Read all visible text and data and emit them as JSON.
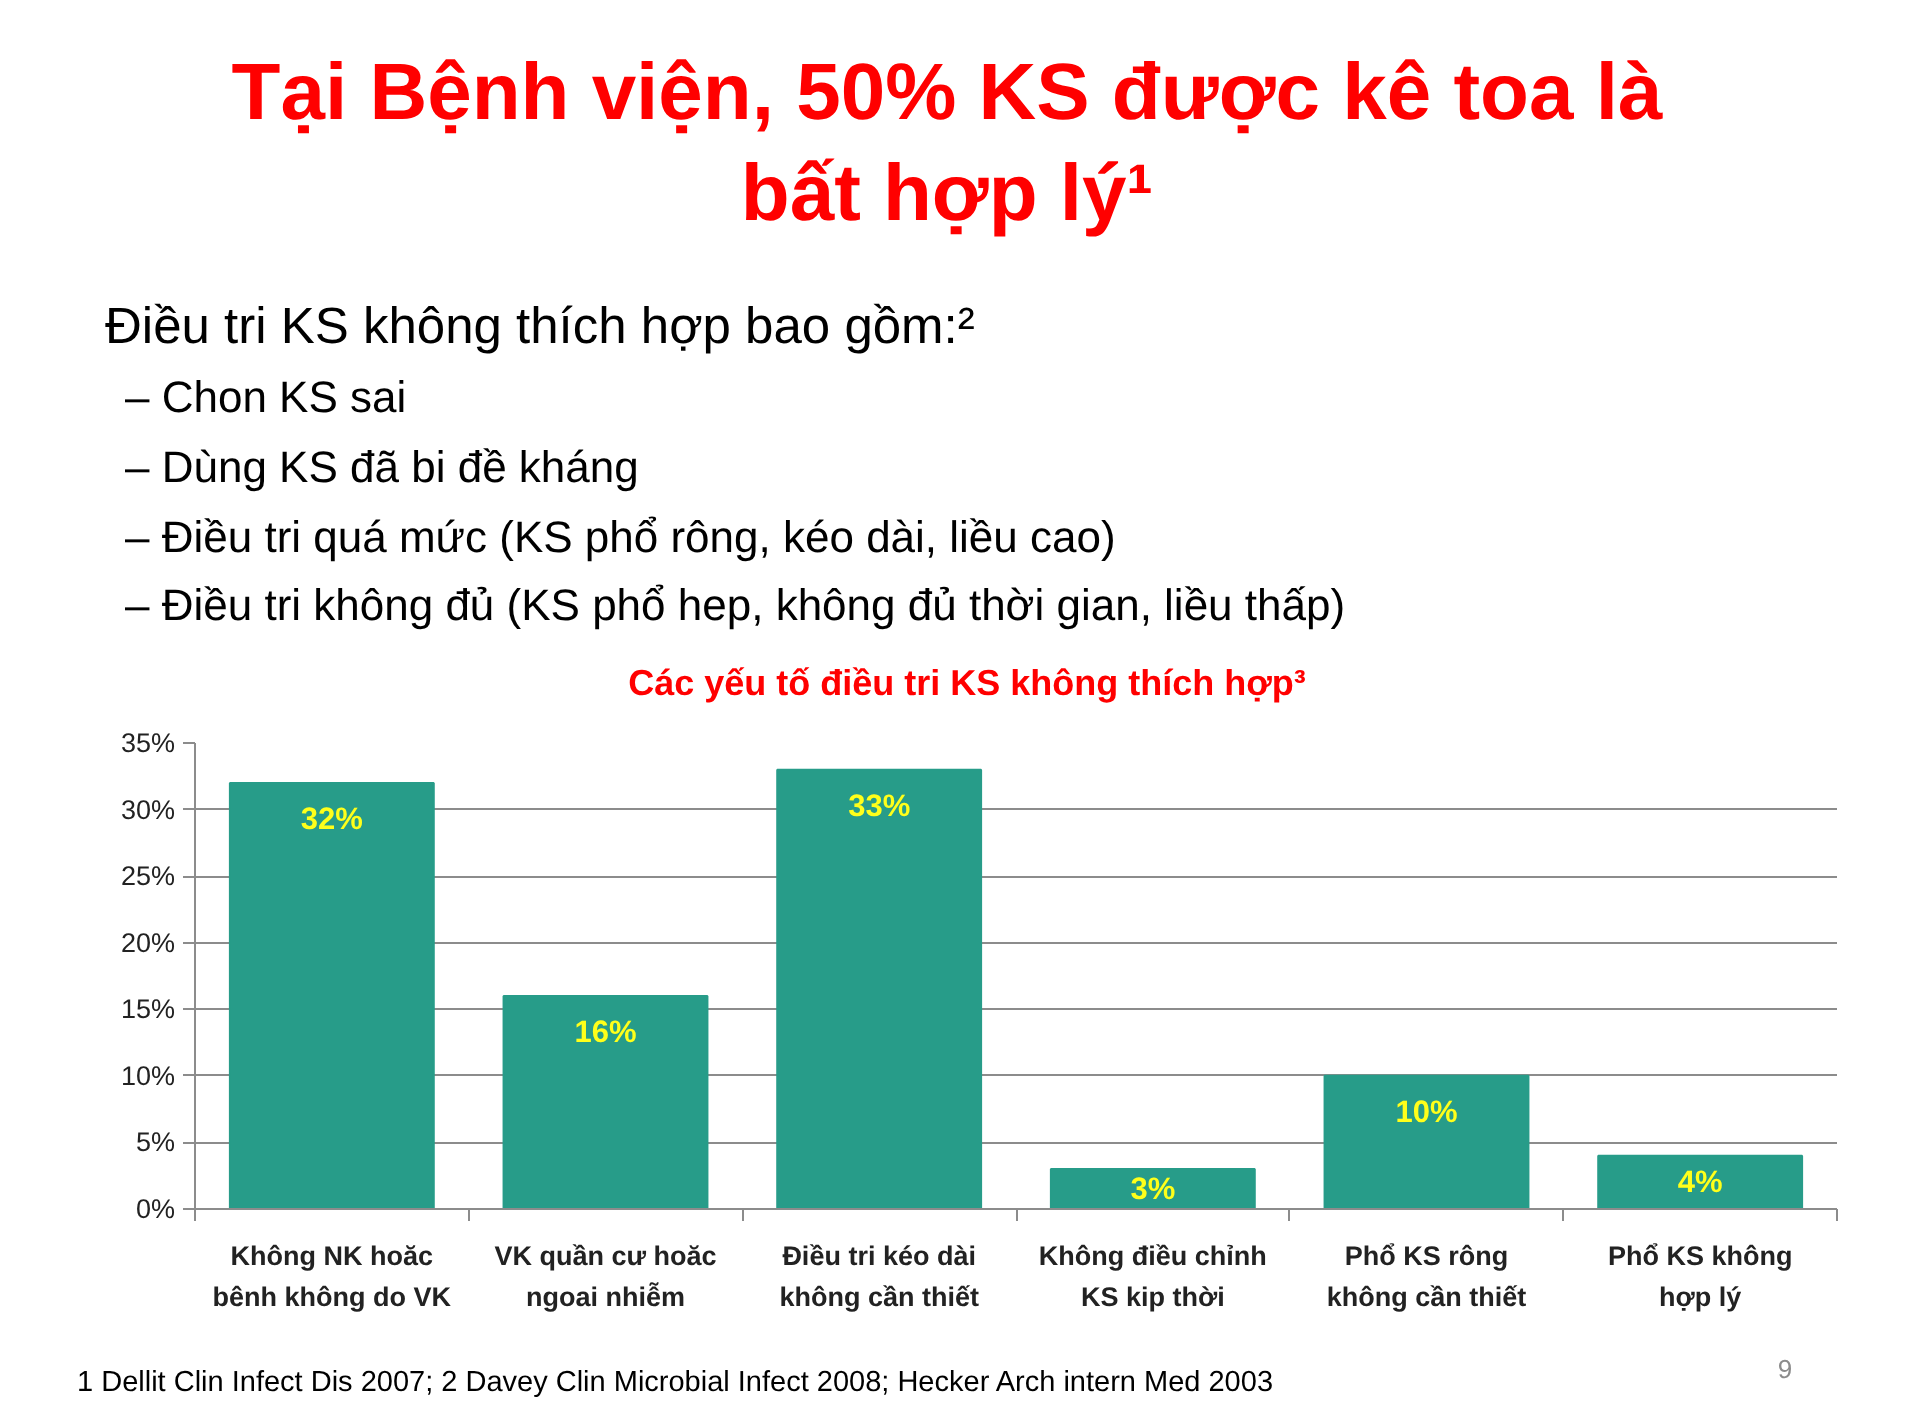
{
  "chart_data": {
    "type": "bar",
    "title": "Tại Bệnh viện, 50% KS được kê toa là\nbất hợp lý¹",
    "subtitle": "Các yếu tố điều tri KS không thích hợp³",
    "annotations": [
      "Điều tri KS không thích hợp bao gồm:²",
      "– Chon KS sai",
      "– Dùng KS đã bi đề kháng",
      "– Điều tri quá mức (KS phổ rông, kéo dài, liều cao)",
      "– Điều tri không đủ (KS phổ hep, không đủ thời gian, liều thấp)",
      "1 Dellit Clin Infect Dis 2007; 2 Davey Clin Microbial Infect 2008; Hecker Arch intern Med 2003",
      "9"
    ],
    "categories": [
      "Không NK hoăc\nbênh không do VK",
      "VK quần cư hoăc\nngoai nhiễm",
      "Điều tri kéo dài\nkhông cần thiết",
      "Không điều chỉnh\nKS kip thời",
      "Phổ KS rông\nkhông cần thiết",
      "Phổ KS không\nhợp lý"
    ],
    "values": [
      32,
      16,
      33,
      3,
      10,
      4
    ],
    "value_labels": [
      "32%",
      "16%",
      "33%",
      "3%",
      "10%",
      "4%"
    ],
    "color": "#279c89",
    "ylim": [
      0,
      35
    ],
    "yticks": [
      {
        "value": 0,
        "label": "0%"
      },
      {
        "value": 5,
        "label": "5%"
      },
      {
        "value": 10,
        "label": "10%"
      },
      {
        "value": 15,
        "label": "15%"
      },
      {
        "value": 20,
        "label": "20%"
      },
      {
        "value": 25,
        "label": "25%"
      },
      {
        "value": 30,
        "label": "30%"
      },
      {
        "value": 35,
        "label": "35%"
      }
    ],
    "grid": "y"
  }
}
